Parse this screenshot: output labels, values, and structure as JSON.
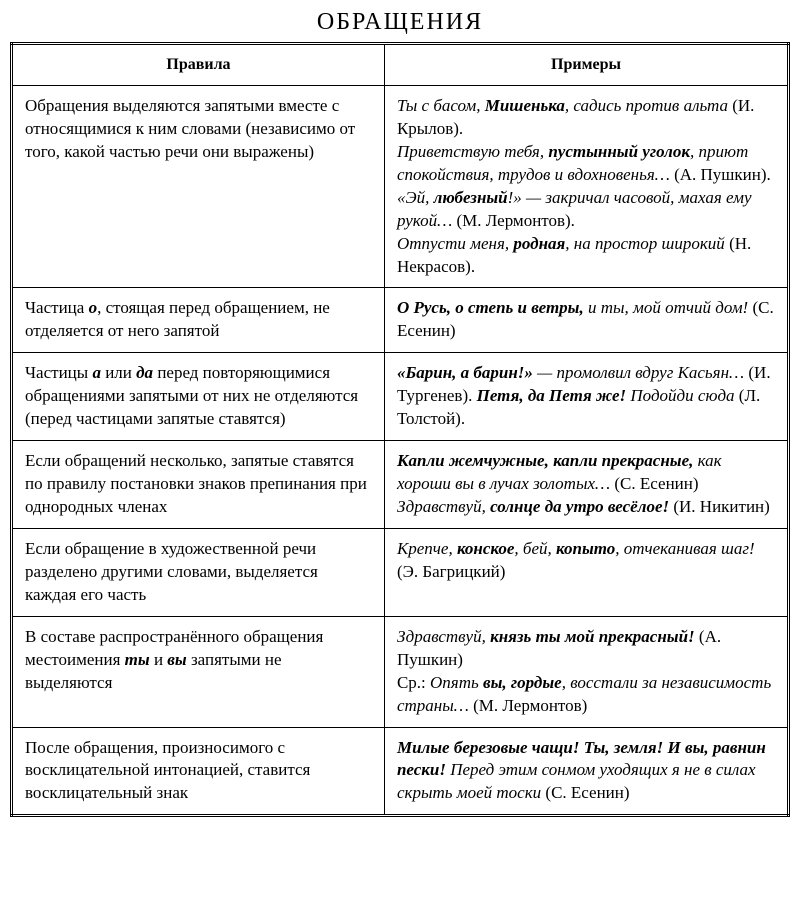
{
  "title": "ОБРАЩЕНИЯ",
  "headers": {
    "rules": "Правила",
    "examples": "Примеры"
  },
  "rows": [
    {
      "rule_html": "Обращения выделяются запятыми вместе с относящимися к ним словами (независимо от того, какой частью речи они выражены)",
      "ex_html": "<i>Ты с басом, <b>Мишенька</b>, садись против альта</i> (И. Крылов).<br><i>Приветствую тебя, <b>пустынный уголок</b>, приют спокойствия, трудов и вдохновенья…</i> (А. Пушкин).<br><i>«Эй, <b>любезный</b>!» — закричал часовой, махая ему рукой…</i> (М. Лермонтов).<br><i>Отпусти меня, <b>родная</b>, на простор широкий</i> (Н. Некрасов)."
    },
    {
      "rule_html": "Частица <span class='bi'>о</span>, стоящая перед обращением, не отделяется от него запятой",
      "ex_html": "<span class='bi'>О Русь, о степь и ветры,</span> <i>и ты, мой отчий дом!</i> (С. Есенин)"
    },
    {
      "rule_html": "Частицы <span class='bi'>а</span> или <span class='bi'>да</span> перед повторяющимися обращениями запятыми от них не отделяются (перед частицами запятые ставятся)",
      "ex_html": "<span class='bi'>«Барин, а барин!»</span> <i>— промолвил вдруг Касьян…</i> (И. Тургенев). <span class='bi'>Петя, да Петя же!</span> <i>Подойди сюда</i> (Л. Толстой)."
    },
    {
      "rule_html": "Если обращений несколько, запятые ставятся по правилу постановки знаков препинания при однородных членах",
      "ex_html": "<span class='bi'>Капли жемчужные, капли прекрасные,</span> <i>как хороши вы в лучах золотых…</i> (С. Есенин)<br><i>Здравствуй,</i> <span class='bi'>солнце да утро весёлое!</span> (И. Никитин)"
    },
    {
      "rule_html": "Если обращение в художественной речи разделено другими словами, выделяется каждая его часть",
      "ex_html": "<i>Крепче, <b>конское</b>, бей, <b>копыто</b>, отчеканивая шаг!</i> (Э. Багрицкий)"
    },
    {
      "rule_html": "В составе распространённого обращения местоимения <span class='bi'>ты</span> и <span class='bi'>вы</span> запятыми не выделяются",
      "ex_html": "<i>Здравствуй,</i> <span class='bi'>князь ты мой прекрасный!</span> (А. Пушкин)<br>Ср.: <i>Опять <b>вы, гордые</b>, восстали за независимость страны…</i> (М. Лермонтов)"
    },
    {
      "rule_html": "После обращения, произносимого с восклицательной интонацией, ставится восклицательный знак",
      "ex_html": "<span class='bi'>Милые березовые чащи! Ты, земля! И вы, равнин пески!</span> <i>Перед этим сонмом уходящих я не в силах скрыть моей тоски</i> (С. Есенин)"
    }
  ],
  "style": {
    "bg": "#ffffff",
    "text": "#000000",
    "border": "#000000",
    "title_fontsize": 24,
    "body_fontsize": 17,
    "header_fontsize": 16,
    "col_rules_width_pct": 48,
    "col_examples_width_pct": 52
  }
}
